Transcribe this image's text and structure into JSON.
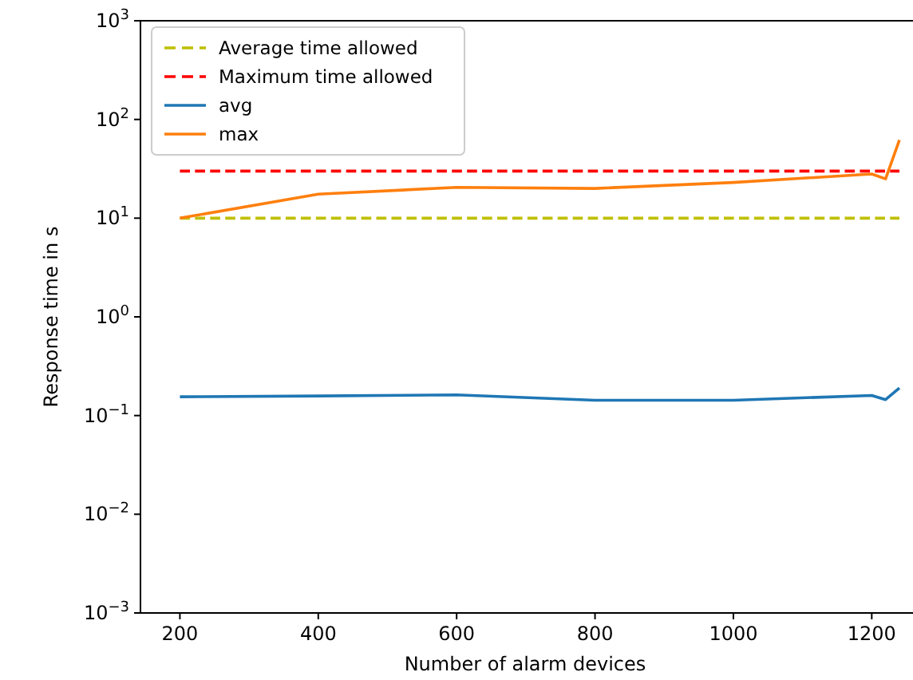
{
  "chart_data": {
    "type": "line",
    "xlabel": "Number of alarm devices",
    "ylabel": "Response time in s",
    "log": "y",
    "legend": "top left",
    "grid": false,
    "xlim": [
      143,
      1255
    ],
    "xticks": [
      200,
      400,
      600,
      800,
      1000,
      1200
    ],
    "ylim": [
      0.001,
      1000
    ],
    "yticks": [
      {
        "value": 0.001,
        "label": "10$^{−3}$"
      },
      {
        "value": 0.01,
        "label": "10$^{−2}$"
      },
      {
        "value": 0.1,
        "label": "10$^{−1}$"
      },
      {
        "value": 1,
        "label": "10$^{0}$"
      },
      {
        "value": 10,
        "label": "10$^{1}$"
      },
      {
        "value": 100,
        "label": "10$^{2}$"
      },
      {
        "value": 1000,
        "label": "10$^{3}$"
      }
    ],
    "series": [
      {
        "name": "Average time allowed",
        "color": "#bfbf00",
        "line_style": "dashed",
        "x": [
          200,
          1240
        ],
        "values": [
          10,
          10
        ]
      },
      {
        "name": "Maximum time allowed",
        "color": "#ff0000",
        "line_style": "dashed",
        "x": [
          200,
          1240
        ],
        "values": [
          30,
          30
        ]
      },
      {
        "name": "avg",
        "color": "#1f77b4",
        "line_style": "solid",
        "x": [
          200,
          400,
          600,
          800,
          1000,
          1200,
          1220,
          1240
        ],
        "values": [
          0.155,
          0.158,
          0.162,
          0.143,
          0.143,
          0.16,
          0.145,
          0.19
        ]
      },
      {
        "name": "max",
        "color": "#ff7f0e",
        "line_style": "solid",
        "x": [
          200,
          400,
          600,
          800,
          1000,
          1200,
          1220,
          1240
        ],
        "values": [
          10,
          17.5,
          20.5,
          20,
          23,
          28,
          25,
          62
        ]
      }
    ]
  }
}
